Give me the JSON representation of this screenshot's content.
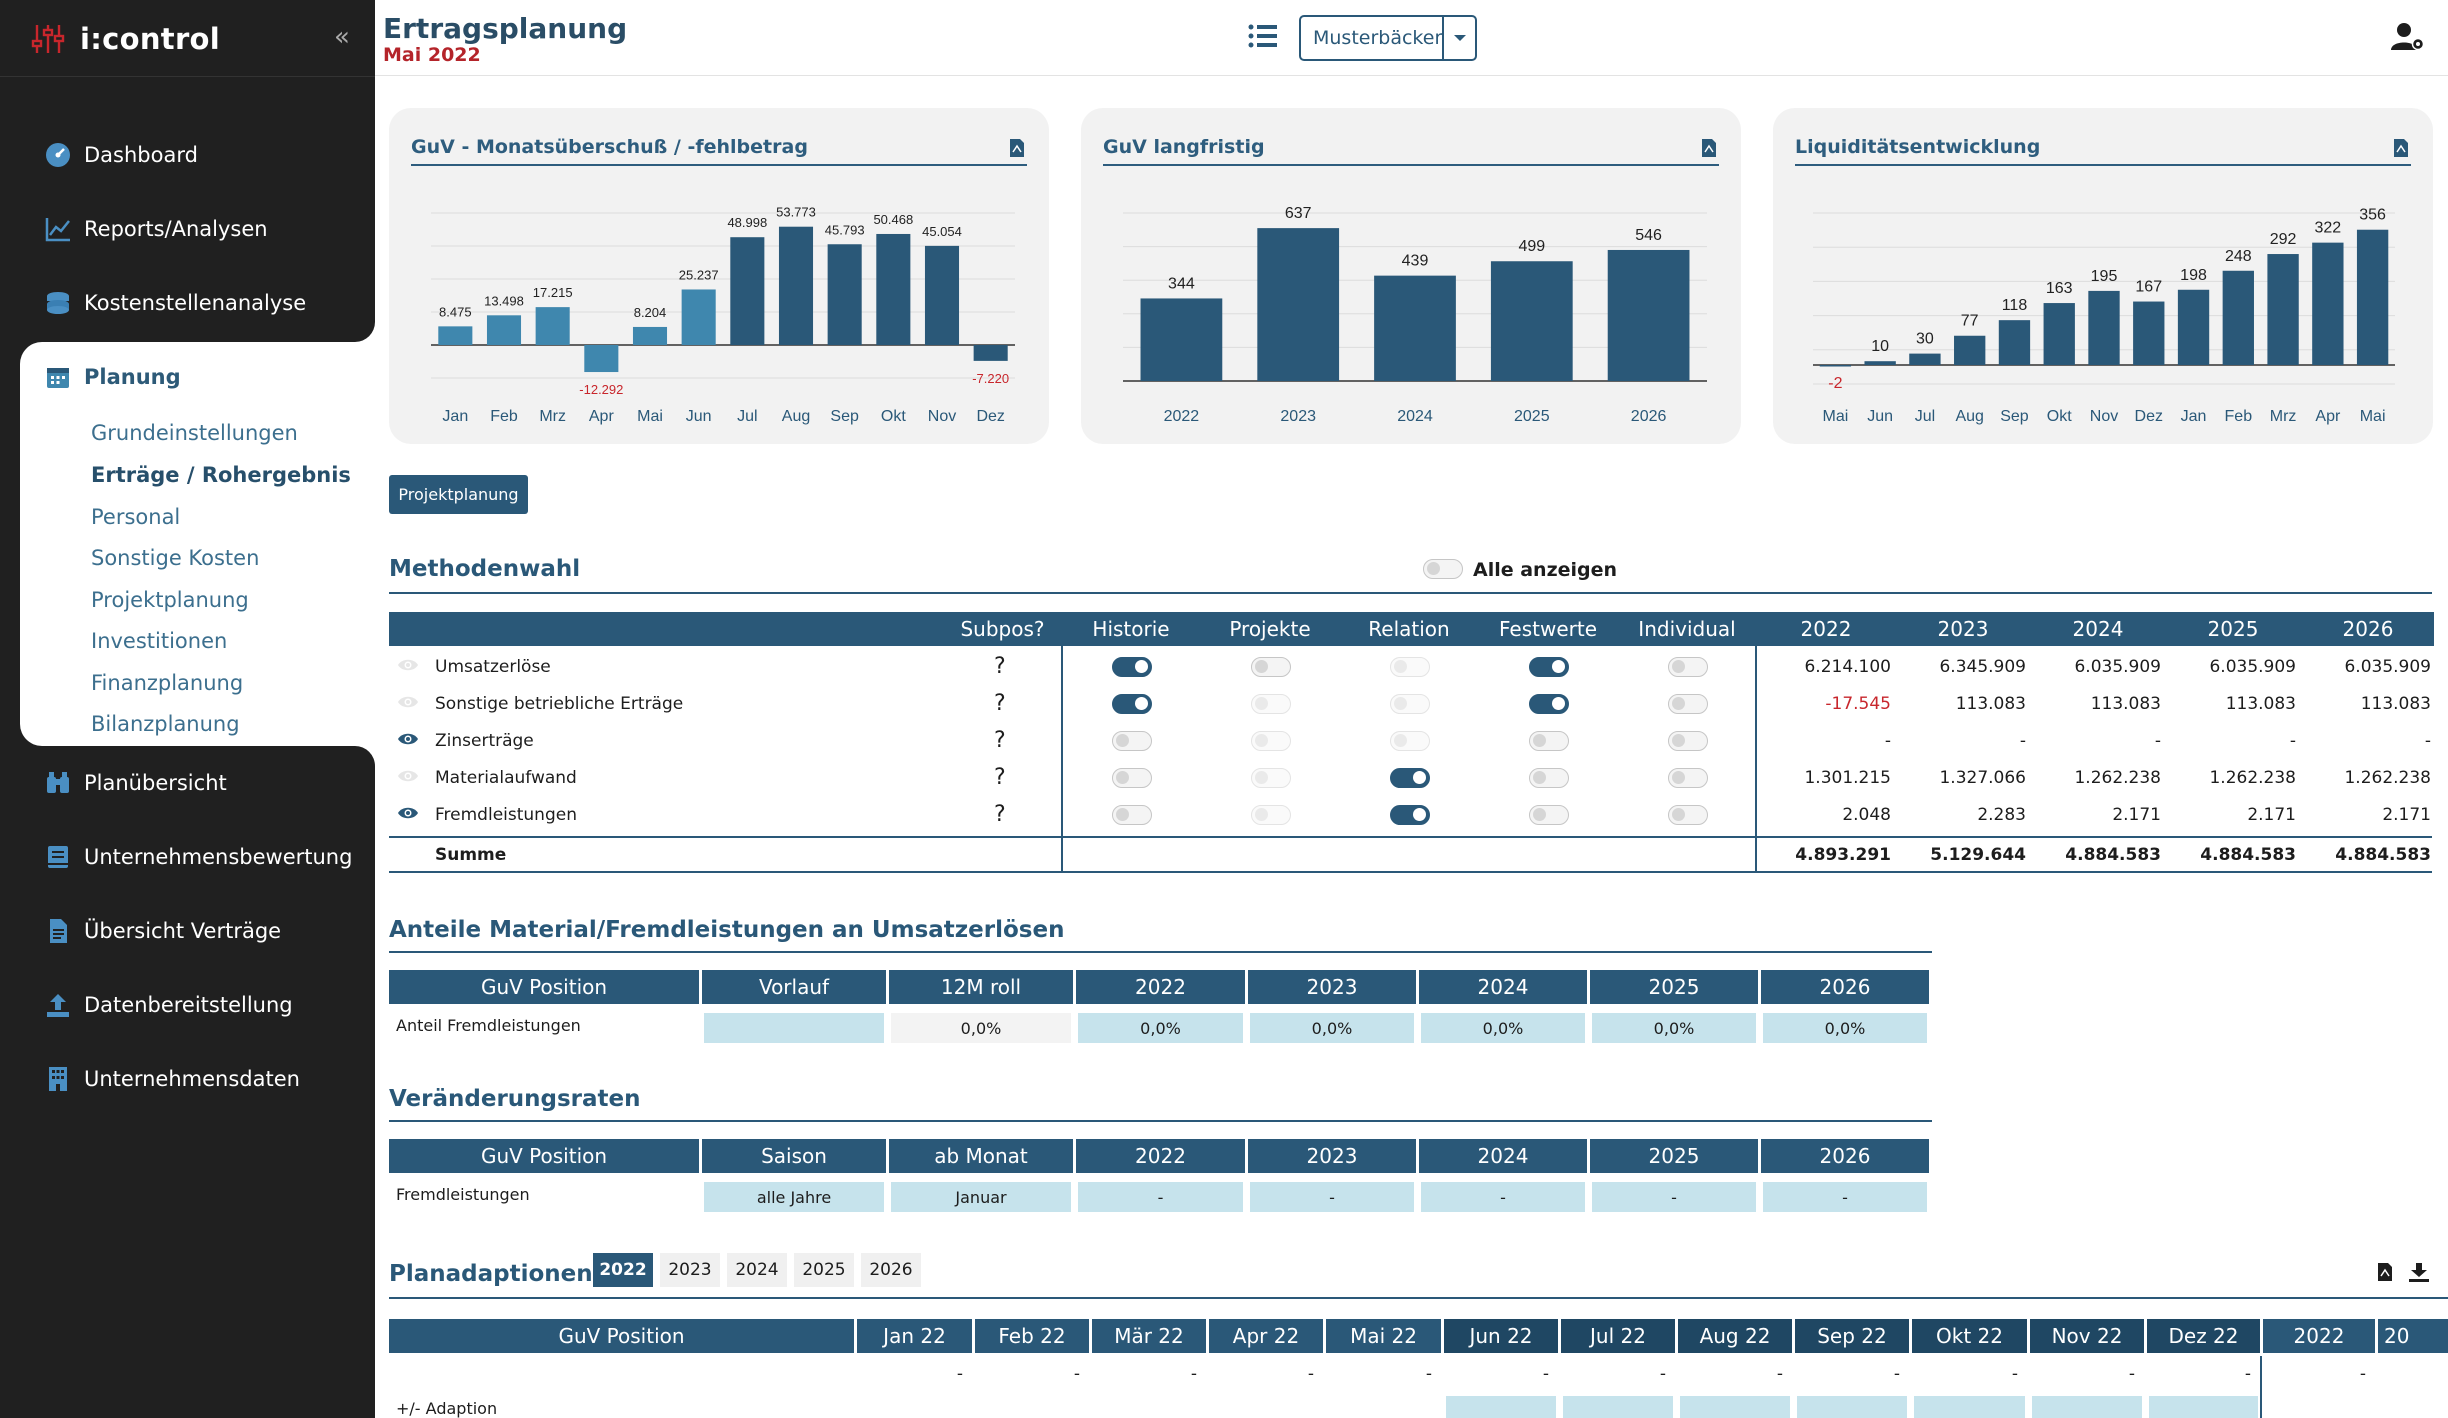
{
  "app": {
    "name": "i:control",
    "collapse_icon": "double-chevron-left-icon"
  },
  "sidebar": {
    "items": [
      {
        "label": "Dashboard",
        "icon": "speedometer-icon"
      },
      {
        "label": "Reports/Analysen",
        "icon": "line-chart-icon"
      },
      {
        "label": "Kostenstellenanalyse",
        "icon": "coins-icon"
      },
      {
        "label": "Planung",
        "icon": "calendar-icon"
      },
      {
        "label": "Planübersicht",
        "icon": "binoculars-icon"
      },
      {
        "label": "Unternehmensbewertung",
        "icon": "book-icon"
      },
      {
        "label": "Übersicht Verträge",
        "icon": "document-icon"
      },
      {
        "label": "Datenbereitstellung",
        "icon": "upload-icon"
      },
      {
        "label": "Unternehmensdaten",
        "icon": "building-icon"
      }
    ],
    "planung_sub": [
      "Grundeinstellungen",
      "Erträge / Rohergebnis",
      "Personal",
      "Sonstige Kosten",
      "Projektplanung",
      "Investitionen",
      "Finanzplanung",
      "Bilanzplanung"
    ],
    "active_sub": "Erträge / Rohergebnis"
  },
  "header": {
    "title": "Ertragsplanung",
    "subtitle": "Mai 2022",
    "company": "Musterbäcker"
  },
  "colors": {
    "primary": "#2a5878",
    "highlight": "#3f87ae",
    "negative": "#c8262c",
    "light_cell": "#c6e3ec"
  },
  "chart_data": [
    {
      "type": "bar",
      "title": "GuV - Monatsüberschuß / -fehlbetrag",
      "categories": [
        "Jan",
        "Feb",
        "Mrz",
        "Apr",
        "Mai",
        "Jun",
        "Jul",
        "Aug",
        "Sep",
        "Okt",
        "Nov",
        "Dez"
      ],
      "values": [
        8475,
        13498,
        17215,
        -12292,
        8204,
        25237,
        48998,
        53773,
        45793,
        50468,
        45054,
        -7220
      ],
      "labels": [
        "8.475",
        "13.498",
        "17.215",
        "-12.292",
        "8.204",
        "25.237",
        "48.998",
        "53.773",
        "45.793",
        "50.468",
        "45.054",
        "-7.220"
      ],
      "actual_count": 6,
      "ylim": [
        -15000,
        60000
      ]
    },
    {
      "type": "bar",
      "title": "GuV langfristig",
      "categories": [
        "2022",
        "2023",
        "2024",
        "2025",
        "2026"
      ],
      "values": [
        344,
        637,
        439,
        499,
        546
      ],
      "labels": [
        "344",
        "637",
        "439",
        "499",
        "546"
      ],
      "ylim": [
        0,
        700
      ]
    },
    {
      "type": "bar",
      "title": "Liquiditätsentwicklung",
      "categories": [
        "Mai",
        "Jun",
        "Jul",
        "Aug",
        "Sep",
        "Okt",
        "Nov",
        "Dez",
        "Jan",
        "Feb",
        "Mrz",
        "Apr",
        "Mai"
      ],
      "values": [
        -2,
        10,
        30,
        77,
        118,
        163,
        195,
        167,
        198,
        248,
        292,
        322,
        356
      ],
      "labels": [
        "-2",
        "10",
        "30",
        "77",
        "118",
        "163",
        "195",
        "167",
        "198",
        "248",
        "292",
        "322",
        "356"
      ],
      "ylim": [
        -50,
        400
      ]
    }
  ],
  "buttons": {
    "projektplanung": "Projektplanung"
  },
  "methodenwahl": {
    "title": "Methodenwahl",
    "show_all_label": "Alle anzeigen",
    "headers": [
      "Subpos?",
      "Historie",
      "Projekte",
      "Relation",
      "Festwerte",
      "Individual",
      "2022",
      "2023",
      "2024",
      "2025",
      "2026"
    ],
    "rows": [
      {
        "label": "Umsatzerlöse",
        "eye": false,
        "subpos": "?",
        "toggles": [
          "on",
          "off",
          "faint",
          "on",
          "off"
        ],
        "values": [
          "6.214.100",
          "6.345.909",
          "6.035.909",
          "6.035.909",
          "6.035.909"
        ]
      },
      {
        "label": "Sonstige betriebliche Erträge",
        "eye": false,
        "subpos": "?",
        "toggles": [
          "on",
          "faint",
          "faint",
          "on",
          "off"
        ],
        "values": [
          "-17.545",
          "113.083",
          "113.083",
          "113.083",
          "113.083"
        ]
      },
      {
        "label": "Zinserträge",
        "eye": true,
        "subpos": "?",
        "toggles": [
          "off",
          "faint",
          "faint",
          "off",
          "off"
        ],
        "values": [
          "-",
          "-",
          "-",
          "-",
          "-"
        ]
      },
      {
        "label": "Materialaufwand",
        "eye": false,
        "subpos": "?",
        "toggles": [
          "off",
          "faint",
          "on",
          "off",
          "off"
        ],
        "values": [
          "1.301.215",
          "1.327.066",
          "1.262.238",
          "1.262.238",
          "1.262.238"
        ]
      },
      {
        "label": "Fremdleistungen",
        "eye": true,
        "subpos": "?",
        "toggles": [
          "off",
          "faint",
          "on",
          "off",
          "off"
        ],
        "values": [
          "2.048",
          "2.283",
          "2.171",
          "2.171",
          "2.171"
        ]
      }
    ],
    "sum": {
      "label": "Summe",
      "values": [
        "4.893.291",
        "5.129.644",
        "4.884.583",
        "4.884.583",
        "4.884.583"
      ]
    }
  },
  "anteile": {
    "title": "Anteile Material/Fremdleistungen an Umsatzerlösen",
    "headers": [
      "GuV Position",
      "Vorlauf",
      "12M roll",
      "2022",
      "2023",
      "2024",
      "2025",
      "2026"
    ],
    "row": {
      "label": "Anteil Fremdleistungen",
      "cells": [
        "",
        "0,0%",
        "0,0%",
        "0,0%",
        "0,0%",
        "0,0%",
        "0,0%"
      ]
    }
  },
  "veraenderung": {
    "title": "Veränderungsraten",
    "headers": [
      "GuV Position",
      "Saison",
      "ab Monat",
      "2022",
      "2023",
      "2024",
      "2025",
      "2026"
    ],
    "row": {
      "label": "Fremdleistungen",
      "cells": [
        "alle Jahre",
        "Januar",
        "-",
        "-",
        "-",
        "-",
        "-"
      ]
    }
  },
  "planadaptionen": {
    "title": "Planadaptionen",
    "year_tabs": [
      "2022",
      "2023",
      "2024",
      "2025",
      "2026"
    ],
    "active_year": "2022",
    "headers": [
      "GuV Position",
      "Jan 22",
      "Feb 22",
      "Mär 22",
      "Apr 22",
      "Mai 22",
      "Jun 22",
      "Jul 22",
      "Aug 22",
      "Sep 22",
      "Okt 22",
      "Nov 22",
      "Dez 22",
      "2022",
      "20"
    ],
    "first_row": [
      "-",
      "-",
      "-",
      "-",
      "-",
      "-",
      "-",
      "-",
      "-",
      "-",
      "-",
      "-",
      "-"
    ],
    "adaption_label": "+/- Adaption"
  }
}
